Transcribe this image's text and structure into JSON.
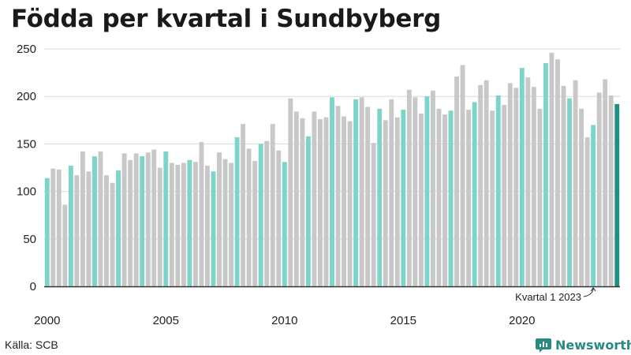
{
  "title": "Födda per kvartal i Sundbyberg",
  "source": "Källa: SCB",
  "brand": "Newsworthy",
  "colors": {
    "q1": "#7fd3c9",
    "other": "#c8c8c8",
    "latest": "#1f8f82",
    "grid": "#d9d9d9",
    "axis": "#333333",
    "brand": "#2a8a80"
  },
  "chart_data": {
    "type": "bar",
    "title": "Födda per kvartal i Sundbyberg",
    "xlabel": "",
    "ylabel": "",
    "ylim": [
      0,
      250
    ],
    "yticks": [
      0,
      50,
      100,
      150,
      200,
      250
    ],
    "xticks": [
      "2000",
      "2005",
      "2010",
      "2015",
      "2020"
    ],
    "grid": true,
    "start_year": 2000,
    "annotation": {
      "text": "Kvartal 1 2023",
      "year": 2023,
      "quarter": 1
    },
    "values": [
      114,
      124,
      123,
      86,
      127,
      117,
      142,
      121,
      137,
      142,
      117,
      109,
      122,
      140,
      133,
      140,
      137,
      141,
      144,
      125,
      142,
      130,
      128,
      130,
      133,
      131,
      152,
      127,
      121,
      141,
      134,
      130,
      157,
      171,
      145,
      132,
      150,
      153,
      171,
      143,
      131,
      198,
      184,
      177,
      158,
      184,
      176,
      178,
      199,
      190,
      179,
      174,
      197,
      199,
      189,
      151,
      187,
      175,
      197,
      178,
      186,
      207,
      199,
      182,
      200,
      206,
      187,
      181,
      185,
      221,
      233,
      186,
      194,
      212,
      217,
      185,
      201,
      191,
      214,
      209,
      230,
      220,
      210,
      187,
      235,
      246,
      239,
      211,
      198,
      217,
      187,
      157,
      170,
      204,
      218,
      201,
      192
    ]
  }
}
